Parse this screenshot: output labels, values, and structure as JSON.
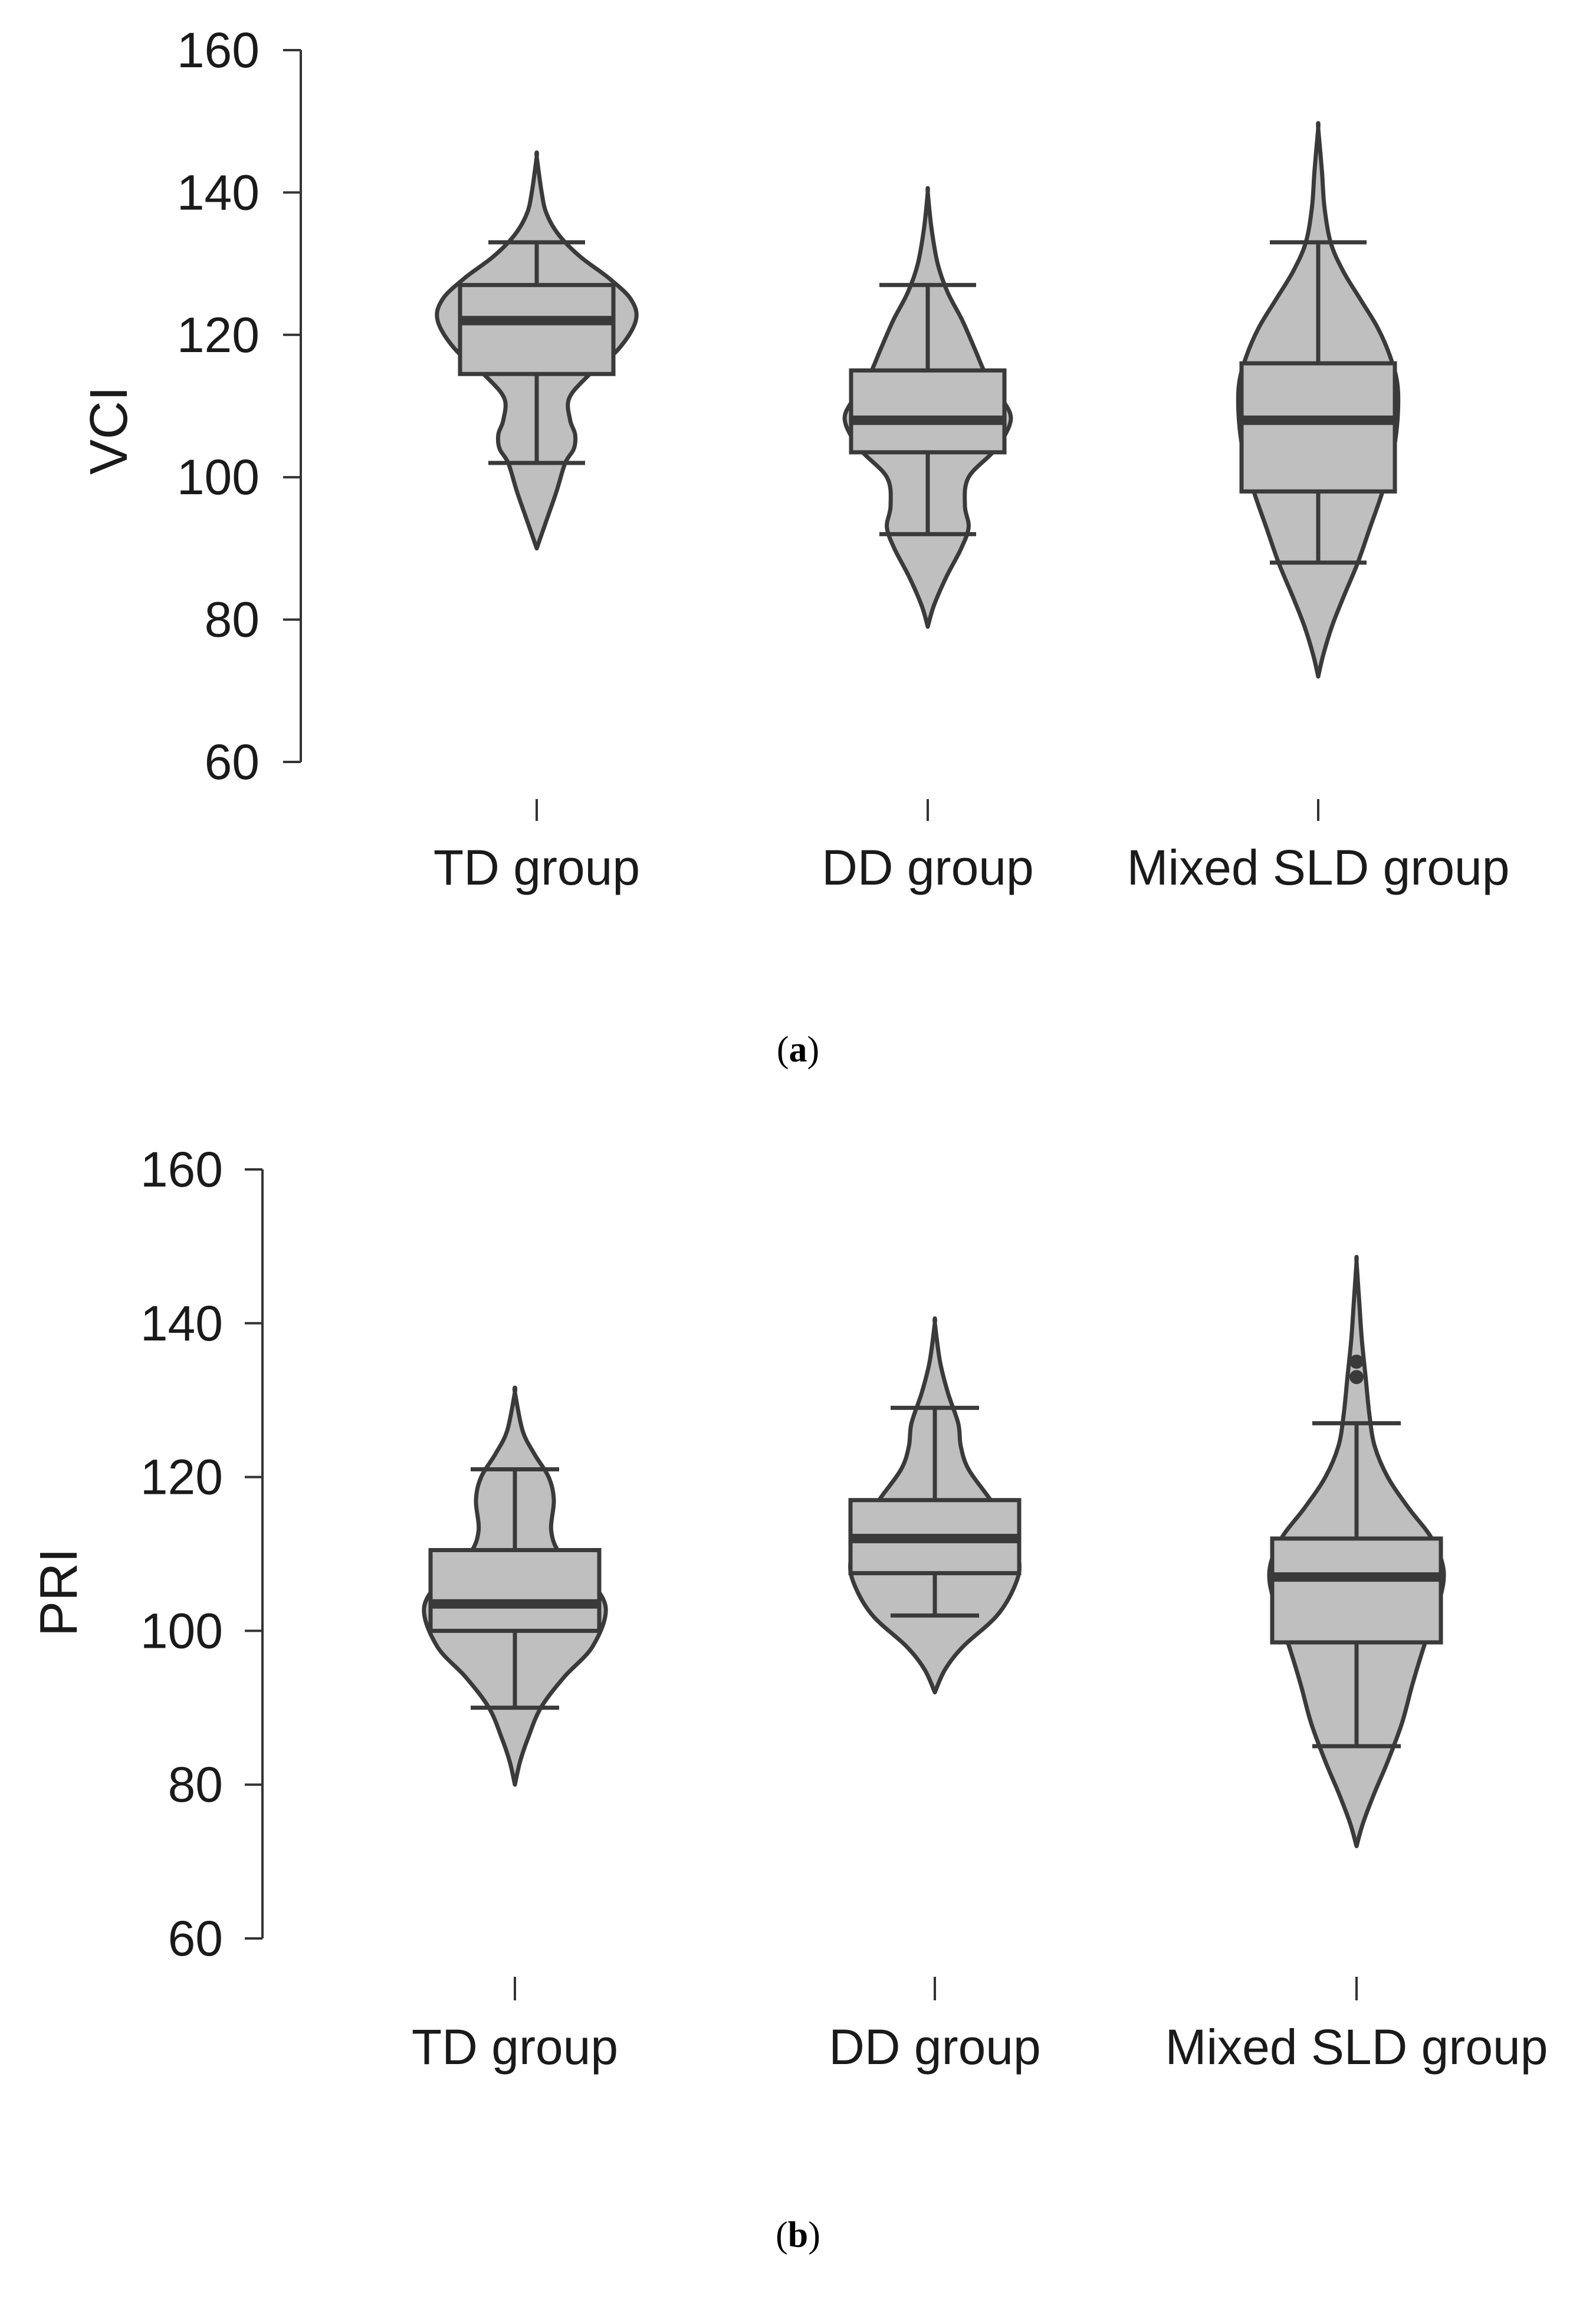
{
  "chart_data": [
    {
      "type": "violin",
      "panel_label": "a",
      "xlabel": "",
      "ylabel": "VCI",
      "ylim": [
        60,
        160
      ],
      "yticks": [
        "60",
        "80",
        "100",
        "120",
        "140",
        "160"
      ],
      "categories": [
        "TD group",
        "DD group",
        "Mixed SLD group"
      ],
      "groups": [
        {
          "name": "TD group",
          "whisker_low": 102,
          "q1": 114.5,
          "median": 122,
          "q3": 127,
          "whisker_high": 133,
          "outliers": [],
          "density": [
            [
              90,
              0
            ],
            [
              94,
              0.08
            ],
            [
              98,
              0.16
            ],
            [
              102,
              0.23
            ],
            [
              104,
              0.3
            ],
            [
              106,
              0.31
            ],
            [
              108,
              0.27
            ],
            [
              111,
              0.26
            ],
            [
              114,
              0.4
            ],
            [
              118,
              0.66
            ],
            [
              122,
              0.8
            ],
            [
              125,
              0.76
            ],
            [
              128,
              0.58
            ],
            [
              131,
              0.35
            ],
            [
              134,
              0.18
            ],
            [
              137,
              0.08
            ],
            [
              140,
              0.04
            ],
            [
              145,
              0
            ]
          ]
        },
        {
          "name": "DD group",
          "whisker_low": 92,
          "q1": 103.5,
          "median": 108,
          "q3": 115,
          "whisker_high": 127,
          "outliers": [],
          "density": [
            [
              79,
              0
            ],
            [
              82,
              0.05
            ],
            [
              86,
              0.15
            ],
            [
              90,
              0.27
            ],
            [
              93,
              0.33
            ],
            [
              96,
              0.3
            ],
            [
              100,
              0.33
            ],
            [
              104,
              0.55
            ],
            [
              108,
              0.67
            ],
            [
              111,
              0.6
            ],
            [
              114,
              0.48
            ],
            [
              118,
              0.38
            ],
            [
              122,
              0.28
            ],
            [
              126,
              0.16
            ],
            [
              130,
              0.08
            ],
            [
              135,
              0.03
            ],
            [
              140,
              0
            ]
          ]
        },
        {
          "name": "Mixed SLD group",
          "whisker_low": 88,
          "q1": 98,
          "median": 108,
          "q3": 116,
          "whisker_high": 133,
          "outliers": [],
          "density": [
            [
              72,
              0
            ],
            [
              75,
              0.04
            ],
            [
              79,
              0.11
            ],
            [
              83,
              0.2
            ],
            [
              88,
              0.32
            ],
            [
              93,
              0.42
            ],
            [
              98,
              0.52
            ],
            [
              103,
              0.6
            ],
            [
              108,
              0.64
            ],
            [
              113,
              0.64
            ],
            [
              117,
              0.58
            ],
            [
              121,
              0.48
            ],
            [
              125,
              0.34
            ],
            [
              129,
              0.2
            ],
            [
              133,
              0.1
            ],
            [
              138,
              0.05
            ],
            [
              143,
              0.03
            ],
            [
              149,
              0
            ]
          ]
        }
      ]
    },
    {
      "type": "violin",
      "panel_label": "b",
      "xlabel": "",
      "ylabel": "PRI",
      "ylim": [
        60,
        160
      ],
      "yticks": [
        "60",
        "80",
        "100",
        "120",
        "140",
        "160"
      ],
      "categories": [
        "TD group",
        "DD group",
        "Mixed SLD group"
      ],
      "groups": [
        {
          "name": "TD group",
          "whisker_low": 90,
          "q1": 100,
          "median": 103.5,
          "q3": 110.5,
          "whisker_high": 121,
          "outliers": [],
          "density": [
            [
              80,
              0
            ],
            [
              83,
              0.04
            ],
            [
              86,
              0.1
            ],
            [
              90,
              0.2
            ],
            [
              94,
              0.38
            ],
            [
              98,
              0.6
            ],
            [
              103,
              0.7
            ],
            [
              107,
              0.55
            ],
            [
              110,
              0.35
            ],
            [
              113,
              0.28
            ],
            [
              117,
              0.3
            ],
            [
              120,
              0.26
            ],
            [
              123,
              0.15
            ],
            [
              126,
              0.06
            ],
            [
              131,
              0
            ]
          ]
        },
        {
          "name": "DD group",
          "whisker_low": 102,
          "q1": 107.5,
          "median": 112,
          "q3": 117,
          "whisker_high": 129,
          "outliers": [],
          "density": [
            [
              92,
              0
            ],
            [
              95,
              0.08
            ],
            [
              98,
              0.22
            ],
            [
              102,
              0.48
            ],
            [
              106,
              0.62
            ],
            [
              109,
              0.65
            ],
            [
              113,
              0.58
            ],
            [
              117,
              0.43
            ],
            [
              121,
              0.26
            ],
            [
              124,
              0.2
            ],
            [
              127,
              0.18
            ],
            [
              131,
              0.1
            ],
            [
              135,
              0.04
            ],
            [
              140,
              0
            ]
          ]
        },
        {
          "name": "Mixed SLD group",
          "whisker_low": 85,
          "q1": 98.5,
          "median": 107,
          "q3": 112,
          "whisker_high": 127,
          "outliers": [
            133,
            135
          ],
          "density": [
            [
              72,
              0
            ],
            [
              75,
              0.05
            ],
            [
              79,
              0.14
            ],
            [
              83,
              0.24
            ],
            [
              88,
              0.35
            ],
            [
              93,
              0.43
            ],
            [
              98,
              0.52
            ],
            [
              104,
              0.64
            ],
            [
              108,
              0.67
            ],
            [
              112,
              0.58
            ],
            [
              116,
              0.4
            ],
            [
              120,
              0.24
            ],
            [
              124,
              0.14
            ],
            [
              128,
              0.1
            ],
            [
              133,
              0.07
            ],
            [
              138,
              0.04
            ],
            [
              143,
              0.02
            ],
            [
              148,
              0
            ]
          ]
        }
      ]
    }
  ]
}
